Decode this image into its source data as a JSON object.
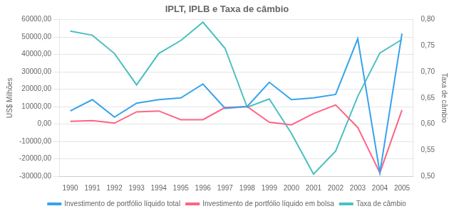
{
  "chart_data": {
    "type": "line",
    "title": "IPLT, IPLB e Taxa de câmbio",
    "x": [
      1990,
      1991,
      1992,
      1993,
      1994,
      1995,
      1996,
      1997,
      1998,
      1999,
      2000,
      2001,
      2002,
      2003,
      2004,
      2005
    ],
    "xlim": [
      1989.5,
      2005.5
    ],
    "xticks": [
      1990,
      1991,
      1992,
      1993,
      1994,
      1995,
      1996,
      1997,
      1998,
      1999,
      2000,
      2001,
      2002,
      2003,
      2004,
      2005
    ],
    "ylabel": "US$ Milhões",
    "y2label": "Taxa de câmbio",
    "ylim": [
      -30000,
      60000
    ],
    "yticks": [
      {
        "value": -30000,
        "label": "-30000,00"
      },
      {
        "value": -20000,
        "label": "-20000,00"
      },
      {
        "value": -10000,
        "label": "-10000,00"
      },
      {
        "value": 0,
        "label": "0,00"
      },
      {
        "value": 10000,
        "label": "10000,00"
      },
      {
        "value": 20000,
        "label": "20000,00"
      },
      {
        "value": 30000,
        "label": "30000,00"
      },
      {
        "value": 40000,
        "label": "40000,00"
      },
      {
        "value": 50000,
        "label": "50000,00"
      },
      {
        "value": 60000,
        "label": "60000,00"
      }
    ],
    "y2lim": [
      0.5,
      0.8
    ],
    "y2ticks": [
      {
        "value": 0.5,
        "label": "0,50"
      },
      {
        "value": 0.55,
        "label": "0,55"
      },
      {
        "value": 0.6,
        "label": "0,60"
      },
      {
        "value": 0.65,
        "label": "0,65"
      },
      {
        "value": 0.7,
        "label": "0,70"
      },
      {
        "value": 0.75,
        "label": "0,75"
      },
      {
        "value": 0.8,
        "label": "0,80"
      }
    ],
    "series": [
      {
        "name": "Investimento de portfólio líquido total",
        "values": [
          7500,
          14000,
          4000,
          12000,
          14000,
          15000,
          23000,
          9000,
          10000,
          24000,
          14000,
          15000,
          17000,
          49000,
          -28000,
          52000
        ]
      },
      {
        "name": "Investimento de portfólio líquido em bolsa",
        "values": [
          1500,
          2000,
          500,
          7000,
          7500,
          2500,
          2500,
          9500,
          10000,
          1000,
          -500,
          6000,
          11000,
          -2000,
          -28000,
          8000
        ]
      },
      {
        "name": "Taxa de câmbio",
        "axis": "y2",
        "values": [
          0.778,
          0.77,
          0.735,
          0.675,
          0.735,
          0.76,
          0.795,
          0.745,
          0.632,
          0.648,
          0.582,
          0.504,
          0.548,
          0.653,
          0.736,
          0.762
        ]
      }
    ],
    "grid": true,
    "legend": "bottom"
  }
}
